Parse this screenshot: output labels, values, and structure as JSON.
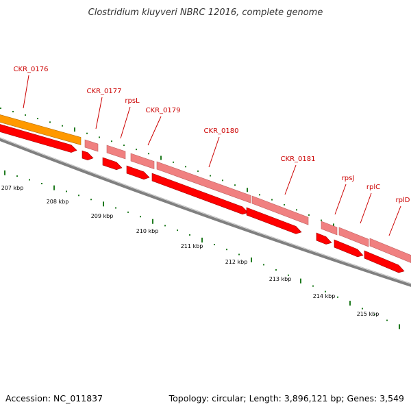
{
  "title": "Clostridium kluyveri NBRC 12016, complete genome",
  "footer": {
    "accession": "Accession: NC_011837",
    "topology": "Topology: circular; Length: 3,896,121 bp; Genes: 3,549"
  },
  "colors": {
    "gene_forward": "#ff0000",
    "gene_cds": "#f08080",
    "gene_highlight": "#ff9900",
    "label": "#cc0000",
    "ticks": "#1f7a1f",
    "backbone": "#808080"
  },
  "genes": [
    {
      "name": "CKR_0176",
      "color": "highlight"
    },
    {
      "name": "CKR_0177"
    },
    {
      "name": "rpsL"
    },
    {
      "name": "CKR_0179"
    },
    {
      "name": "CKR_0180"
    },
    {
      "name": "CKR_0181"
    },
    {
      "name": "rpsJ"
    },
    {
      "name": "rplC"
    },
    {
      "name": "rplD"
    }
  ],
  "ticks": [
    {
      "label": "207 kbp"
    },
    {
      "label": "208 kbp"
    },
    {
      "label": "209 kbp"
    },
    {
      "label": "210 kbp"
    },
    {
      "label": "211 kbp"
    },
    {
      "label": "212 kbp"
    },
    {
      "label": "213 kbp"
    },
    {
      "label": "214 kbp"
    },
    {
      "label": "215 kbp"
    }
  ]
}
